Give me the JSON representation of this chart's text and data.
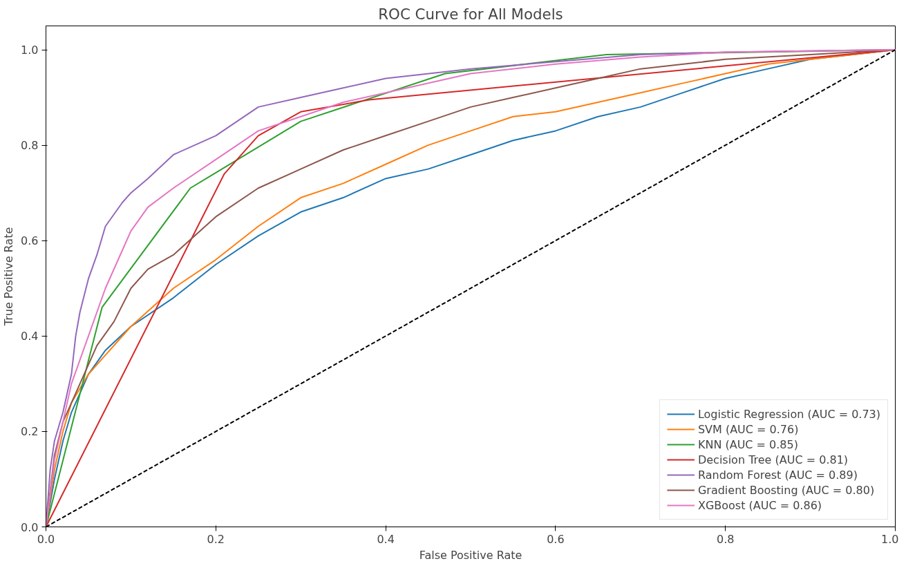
{
  "chart_data": {
    "type": "line",
    "title": "ROC Curve for All Models",
    "xlabel": "False Positive Rate",
    "ylabel": "True Positive Rate",
    "xlim": [
      0,
      1
    ],
    "ylim": [
      0,
      1.05
    ],
    "xticks": [
      {
        "value": 0,
        "label": "0.0"
      },
      {
        "value": 0.2,
        "label": "0.2"
      },
      {
        "value": 0.4,
        "label": "0.4"
      },
      {
        "value": 0.6,
        "label": "0.6"
      },
      {
        "value": 0.8,
        "label": "0.8"
      },
      {
        "value": 1,
        "label": "1.0"
      }
    ],
    "yticks": [
      {
        "value": 0,
        "label": "0.0"
      },
      {
        "value": 0.2,
        "label": "0.2"
      },
      {
        "value": 0.4,
        "label": "0.4"
      },
      {
        "value": 0.6,
        "label": "0.6"
      },
      {
        "value": 0.8,
        "label": "0.8"
      },
      {
        "value": 1,
        "label": "1.0"
      }
    ],
    "grid": false,
    "legend": "bottom right",
    "marker": "none",
    "line_style": "solid",
    "series": [
      {
        "name": "Logistic Regression (AUC = 0.73)",
        "color": "#1f77b4",
        "x": [
          0,
          0.01,
          0.02,
          0.03,
          0.05,
          0.07,
          0.1,
          0.15,
          0.2,
          0.25,
          0.3,
          0.35,
          0.4,
          0.45,
          0.5,
          0.55,
          0.6,
          0.65,
          0.7,
          0.75,
          0.8,
          0.85,
          0.9,
          0.95,
          1
        ],
        "values": [
          0,
          0.1,
          0.18,
          0.24,
          0.32,
          0.37,
          0.42,
          0.48,
          0.55,
          0.61,
          0.66,
          0.69,
          0.73,
          0.75,
          0.78,
          0.81,
          0.83,
          0.86,
          0.88,
          0.91,
          0.94,
          0.96,
          0.98,
          0.99,
          1
        ]
      },
      {
        "name": "SVM (AUC = 0.76)",
        "color": "#ff7f0e",
        "x": [
          0,
          0.01,
          0.02,
          0.03,
          0.05,
          0.07,
          0.1,
          0.15,
          0.2,
          0.25,
          0.3,
          0.35,
          0.4,
          0.45,
          0.5,
          0.55,
          0.6,
          0.65,
          0.7,
          0.75,
          0.8,
          0.85,
          0.9,
          1
        ],
        "values": [
          0,
          0.12,
          0.2,
          0.26,
          0.32,
          0.36,
          0.42,
          0.5,
          0.56,
          0.63,
          0.69,
          0.72,
          0.76,
          0.8,
          0.83,
          0.86,
          0.87,
          0.89,
          0.91,
          0.93,
          0.95,
          0.97,
          0.98,
          1
        ]
      },
      {
        "name": "KNN (AUC = 0.85)",
        "color": "#2ca02c",
        "x": [
          0,
          0.066,
          0.17,
          0.3,
          0.47,
          0.66,
          1
        ],
        "values": [
          0,
          0.46,
          0.71,
          0.85,
          0.95,
          0.99,
          1
        ]
      },
      {
        "name": "Decision Tree (AUC = 0.81)",
        "color": "#d62728",
        "x": [
          0,
          0.21,
          0.25,
          0.3,
          0.38,
          1
        ],
        "values": [
          0,
          0.74,
          0.82,
          0.87,
          0.895,
          1
        ]
      },
      {
        "name": "Random Forest (AUC = 0.89)",
        "color": "#9467bd",
        "x": [
          0,
          0.005,
          0.01,
          0.02,
          0.03,
          0.035,
          0.04,
          0.05,
          0.06,
          0.07,
          0.09,
          0.1,
          0.12,
          0.15,
          0.2,
          0.25,
          0.3,
          0.35,
          0.4,
          0.5,
          0.6,
          0.7,
          0.8,
          1
        ],
        "values": [
          0,
          0.12,
          0.18,
          0.24,
          0.32,
          0.4,
          0.45,
          0.52,
          0.57,
          0.63,
          0.68,
          0.7,
          0.73,
          0.78,
          0.82,
          0.88,
          0.9,
          0.92,
          0.94,
          0.96,
          0.975,
          0.99,
          0.995,
          1
        ]
      },
      {
        "name": "Gradient Boosting (AUC = 0.80)",
        "color": "#8c564b",
        "x": [
          0,
          0.01,
          0.02,
          0.04,
          0.06,
          0.08,
          0.1,
          0.12,
          0.15,
          0.2,
          0.25,
          0.3,
          0.35,
          0.4,
          0.45,
          0.5,
          0.55,
          0.6,
          0.65,
          0.7,
          0.8,
          0.9,
          1
        ],
        "values": [
          0,
          0.15,
          0.22,
          0.3,
          0.38,
          0.43,
          0.5,
          0.54,
          0.57,
          0.65,
          0.71,
          0.75,
          0.79,
          0.82,
          0.85,
          0.88,
          0.9,
          0.92,
          0.94,
          0.96,
          0.98,
          0.99,
          1
        ]
      },
      {
        "name": "XGBoost (AUC = 0.86)",
        "color": "#e377c2",
        "x": [
          0,
          0.01,
          0.02,
          0.03,
          0.05,
          0.07,
          0.09,
          0.1,
          0.12,
          0.15,
          0.2,
          0.25,
          0.3,
          0.35,
          0.4,
          0.5,
          0.6,
          0.7,
          0.8,
          1
        ],
        "values": [
          0,
          0.14,
          0.22,
          0.3,
          0.4,
          0.5,
          0.58,
          0.62,
          0.67,
          0.71,
          0.77,
          0.83,
          0.86,
          0.89,
          0.91,
          0.95,
          0.97,
          0.985,
          0.995,
          1
        ]
      },
      {
        "color": "#000000",
        "line_style": "dashed",
        "x": [
          0,
          1
        ],
        "values": [
          0,
          1
        ]
      }
    ]
  }
}
